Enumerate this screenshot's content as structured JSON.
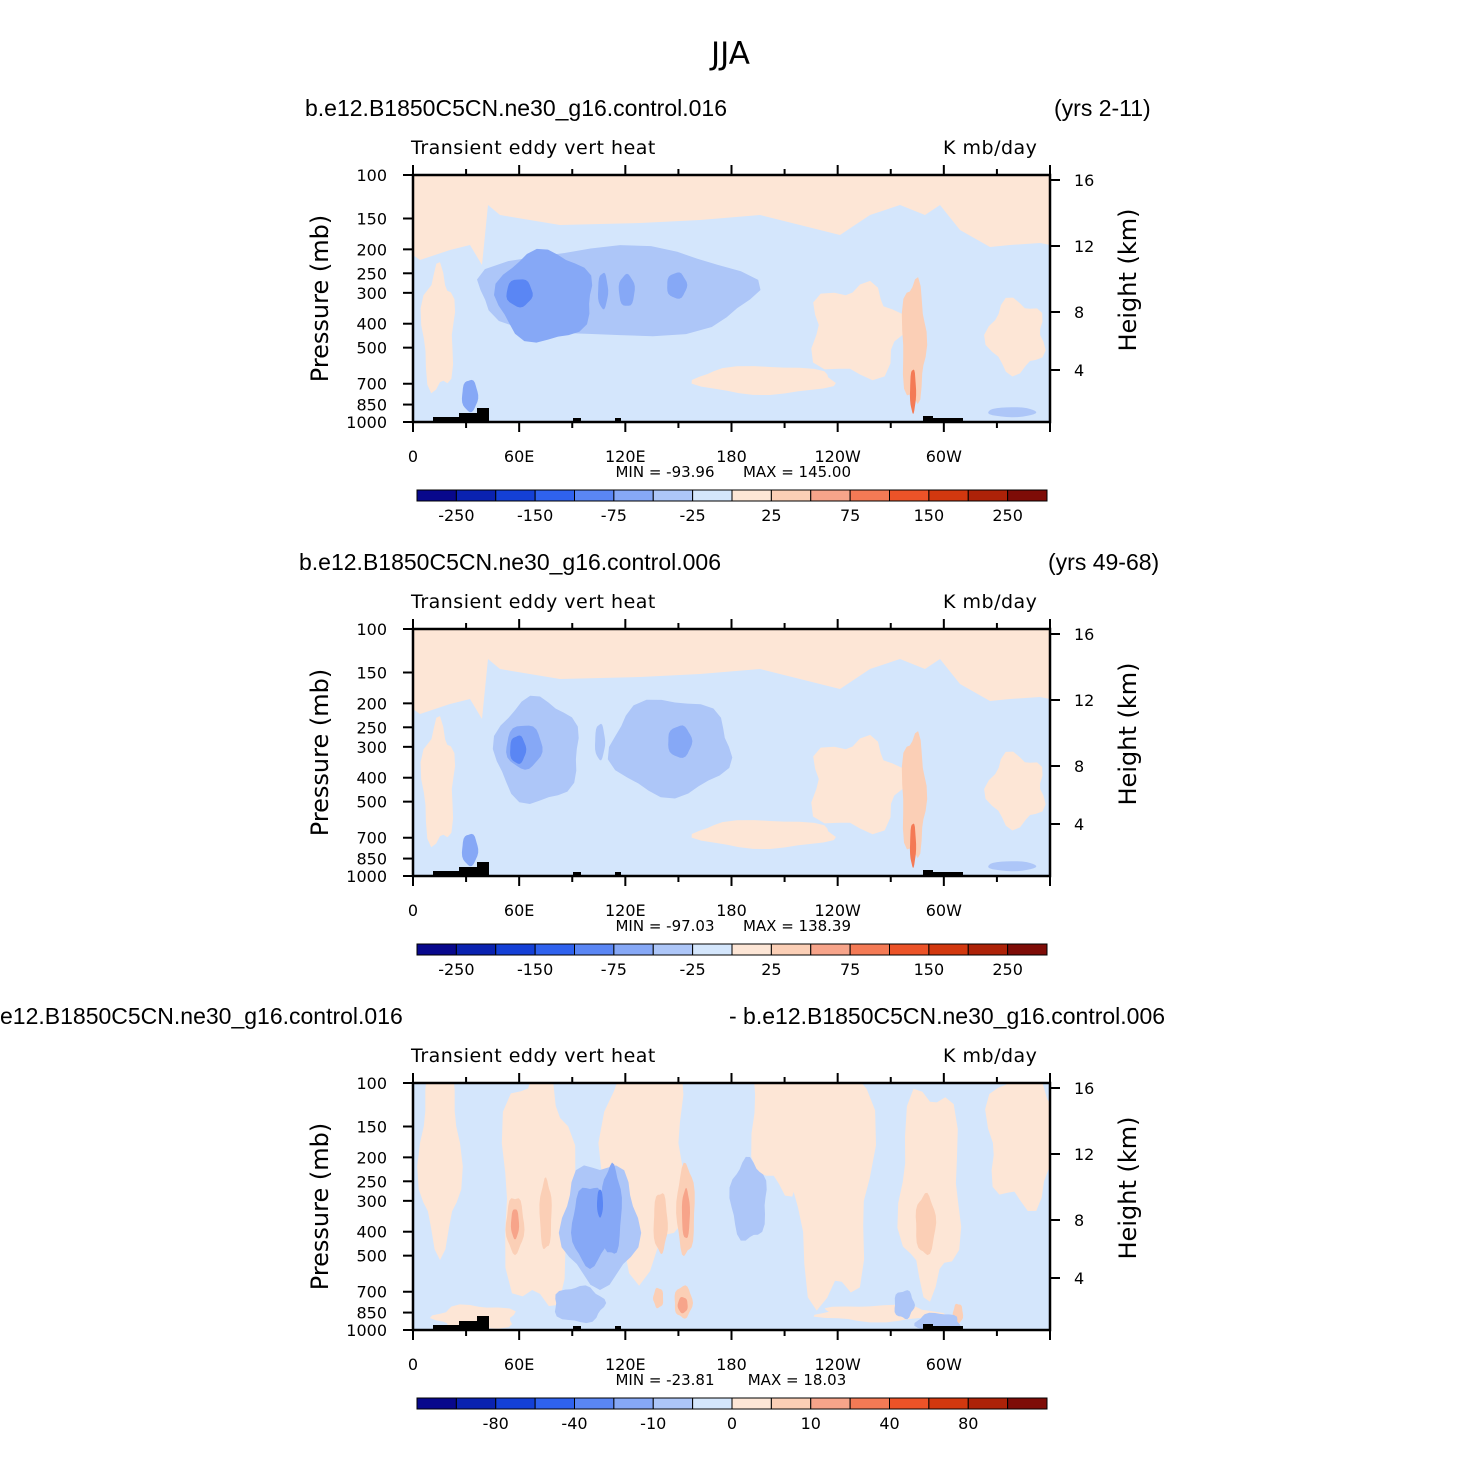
{
  "title": "JJA",
  "chart_data": [
    {
      "type": "heatmap",
      "panel": "top",
      "case_left": "b.e12.B1850C5CN.ne30_g16.control.016",
      "case_right": "(yrs 2-11)",
      "variable": "Transient eddy vert heat",
      "units": "K mb/day",
      "ylabel": "Pressure (mb)",
      "y2label": "Height (km)",
      "xticks": [
        "0",
        "60E",
        "120E",
        "180",
        "120W",
        "60W"
      ],
      "yticks": [
        "100",
        "150",
        "200",
        "250",
        "300",
        "400",
        "500",
        "700",
        "850",
        "1000"
      ],
      "y2ticks": [
        "16",
        "12",
        "8",
        "4"
      ],
      "xlim": [
        0,
        360
      ],
      "ylim": [
        1000,
        100
      ],
      "contour_levels": [
        "-250",
        "-150",
        "-75",
        "-25",
        "25",
        "75",
        "150",
        "250"
      ],
      "min_text": "MIN = -93.96",
      "max_text": "MAX = 145.00",
      "min": -93.96,
      "max": 145.0,
      "features": [
        {
          "kind": "neg",
          "lon": 60,
          "p": 300,
          "strength": 2,
          "note": "eddy min near 60E"
        },
        {
          "kind": "neg",
          "lon": 97,
          "p": 290,
          "strength": 1
        },
        {
          "kind": "neg",
          "lon": 150,
          "p": 285,
          "strength": 1
        },
        {
          "kind": "pos",
          "lon": 210,
          "p": 720,
          "strength": 0,
          "note": "weak positive Pacific low levels"
        },
        {
          "kind": "pos",
          "lon": 282,
          "p": 650,
          "strength": 1,
          "note": "Andes peak max"
        }
      ]
    },
    {
      "type": "heatmap",
      "panel": "middle",
      "case_left": "b.e12.B1850C5CN.ne30_g16.control.006",
      "case_right": "(yrs 49-68)",
      "variable": "Transient eddy vert heat",
      "units": "K mb/day",
      "ylabel": "Pressure (mb)",
      "y2label": "Height (km)",
      "xticks": [
        "0",
        "60E",
        "120E",
        "180",
        "120W",
        "60W"
      ],
      "yticks": [
        "100",
        "150",
        "200",
        "250",
        "300",
        "400",
        "500",
        "700",
        "850",
        "1000"
      ],
      "y2ticks": [
        "16",
        "12",
        "8",
        "4"
      ],
      "xlim": [
        0,
        360
      ],
      "ylim": [
        1000,
        100
      ],
      "contour_levels": [
        "-250",
        "-150",
        "-75",
        "-25",
        "25",
        "75",
        "150",
        "250"
      ],
      "min_text": "MIN = -97.03",
      "max_text": "MAX = 138.39",
      "min": -97.03,
      "max": 138.39,
      "features": [
        {
          "kind": "neg",
          "lon": 60,
          "p": 300,
          "strength": 2
        },
        {
          "kind": "neg",
          "lon": 150,
          "p": 300,
          "strength": 1
        },
        {
          "kind": "pos",
          "lon": 225,
          "p": 780,
          "strength": 0
        },
        {
          "kind": "pos",
          "lon": 282,
          "p": 650,
          "strength": 1
        }
      ]
    },
    {
      "type": "heatmap",
      "panel": "bottom",
      "case_left": "e12.B1850C5CN.ne30_g16.control.016",
      "case_right": "- b.e12.B1850C5CN.ne30_g16.control.006",
      "variable": "Transient eddy vert heat",
      "units": "K mb/day",
      "ylabel": "Pressure (mb)",
      "y2label": "Height (km)",
      "xticks": [
        "0",
        "60E",
        "120E",
        "180",
        "120W",
        "60W"
      ],
      "yticks": [
        "100",
        "150",
        "200",
        "250",
        "300",
        "400",
        "500",
        "700",
        "850",
        "1000"
      ],
      "y2ticks": [
        "16",
        "12",
        "8",
        "4"
      ],
      "xlim": [
        0,
        360
      ],
      "ylim": [
        1000,
        100
      ],
      "contour_levels": [
        "-80",
        "-40",
        "-10",
        "0",
        "10",
        "40",
        "80"
      ],
      "min_text": "MIN = -23.81",
      "max_text": "MAX =   18.03",
      "min": -23.81,
      "max": 18.03,
      "features": [
        {
          "kind": "pos",
          "lon": 58,
          "p": 380,
          "strength": 1
        },
        {
          "kind": "neg",
          "lon": 100,
          "p": 330,
          "strength": 2
        },
        {
          "kind": "pos",
          "lon": 155,
          "p": 370,
          "strength": 1
        },
        {
          "kind": "pos",
          "lon": 155,
          "p": 780,
          "strength": 1
        },
        {
          "kind": "pos",
          "lon": 290,
          "p": 400,
          "strength": 0
        }
      ]
    }
  ],
  "colors": {
    "colorbar": [
      "#08088c",
      "#0a22b0",
      "#1440d6",
      "#2f62ee",
      "#5a86f4",
      "#86a8f6",
      "#adc6f8",
      "#d4e6fc",
      "#fde6d6",
      "#fbcfb6",
      "#f7a48a",
      "#f47a55",
      "#ec5328",
      "#d2380f",
      "#ad2208",
      "#7e0c07"
    ],
    "neg0": "#d4e6fc",
    "neg1": "#adc6f8",
    "neg2": "#86a8f6",
    "neg3": "#5a86f4",
    "pos0": "#fde6d6",
    "pos1": "#fbcfb6",
    "pos2": "#f7a48a"
  }
}
